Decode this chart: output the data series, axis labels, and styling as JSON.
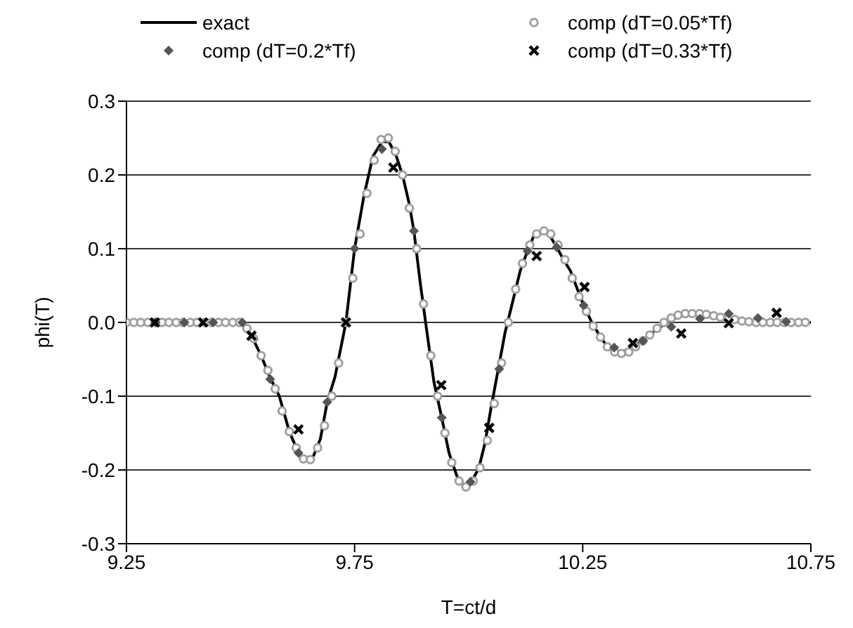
{
  "chart_data": {
    "type": "line",
    "xlabel": "T=ct/d",
    "ylabel": "phi(T)",
    "xlim": [
      9.25,
      10.75
    ],
    "xticks": [
      9.25,
      9.75,
      10.25,
      10.75
    ],
    "ylim": [
      -0.3,
      0.3
    ],
    "yticks": [
      {
        "value": 0.3,
        "label": "0.3"
      },
      {
        "value": 0.2,
        "label": "0.2"
      },
      {
        "value": 0.1,
        "label": "0.1"
      },
      {
        "value": 0,
        "label": "0.0"
      },
      {
        "value": -0.1,
        "label": "-0.1"
      },
      {
        "value": -0.2,
        "label": "-0.2"
      },
      {
        "value": -0.3,
        "label": "-0.3"
      }
    ],
    "grid": "y",
    "legend": "top",
    "series": [
      {
        "name": "exact",
        "marker": "none",
        "line_style": "solid",
        "color": "#000000",
        "x": [
          9.25,
          9.35,
          9.45,
          9.504,
          9.524,
          9.545,
          9.565,
          9.585,
          9.607,
          9.627,
          9.642,
          9.66,
          9.675,
          9.69,
          9.707,
          9.731,
          9.75,
          9.77,
          9.79,
          9.81,
          9.825,
          9.84,
          9.855,
          9.87,
          9.88,
          9.894,
          9.909,
          9.924,
          9.941,
          9.957,
          9.974,
          9.99,
          10.007,
          10.022,
          10.036,
          10.049,
          10.065,
          10.08,
          10.098,
          10.113,
          10.129,
          10.144,
          10.16,
          10.175,
          10.193,
          10.209,
          10.223,
          10.252,
          10.27,
          10.288,
          10.303,
          10.319,
          10.334,
          10.35,
          10.38,
          10.411,
          10.442,
          10.473,
          10.509,
          10.54,
          10.58,
          10.632,
          10.75
        ],
        "values": [
          0,
          0,
          0,
          0,
          -0.018,
          -0.045,
          -0.075,
          -0.1,
          -0.148,
          -0.177,
          -0.187,
          -0.181,
          -0.158,
          -0.108,
          -0.074,
          0,
          0.1,
          0.17,
          0.225,
          0.245,
          0.245,
          0.228,
          0.2,
          0.16,
          0.124,
          0.053,
          -0.015,
          -0.081,
          -0.129,
          -0.177,
          -0.208,
          -0.222,
          -0.215,
          -0.198,
          -0.163,
          -0.116,
          -0.063,
          -0.013,
          0.032,
          0.07,
          0.097,
          0.119,
          0.124,
          0.121,
          0.102,
          0.084,
          0.07,
          0.023,
          0,
          -0.019,
          -0.032,
          -0.04,
          -0.04,
          -0.037,
          -0.025,
          -0.01,
          0.003,
          0.01,
          0.012,
          0.01,
          0.005,
          0.001,
          0
        ]
      },
      {
        "name": "comp (dT=0.05*Tf)",
        "type": "scatter",
        "marker": "circle",
        "color": "#a0a0a0",
        "x": [
          9.25,
          9.266,
          9.281,
          9.297,
          9.312,
          9.328,
          9.343,
          9.359,
          9.374,
          9.39,
          9.405,
          9.421,
          9.436,
          9.452,
          9.467,
          9.483,
          9.498,
          9.514,
          9.529,
          9.545,
          9.56,
          9.576,
          9.591,
          9.607,
          9.622,
          9.638,
          9.653,
          9.669,
          9.684,
          9.7,
          9.715,
          9.731,
          9.746,
          9.762,
          9.777,
          9.793,
          9.808,
          9.824,
          9.839,
          9.855,
          9.87,
          9.886,
          9.901,
          9.917,
          9.932,
          9.948,
          9.963,
          9.979,
          9.994,
          10.01,
          10.025,
          10.041,
          10.056,
          10.072,
          10.087,
          10.103,
          10.118,
          10.134,
          10.149,
          10.165,
          10.18,
          10.196,
          10.211,
          10.227,
          10.242,
          10.258,
          10.273,
          10.289,
          10.304,
          10.32,
          10.335,
          10.351,
          10.366,
          10.382,
          10.397,
          10.413,
          10.428,
          10.444,
          10.459,
          10.475,
          10.49,
          10.506,
          10.521,
          10.537,
          10.552,
          10.568,
          10.583,
          10.599,
          10.614,
          10.63,
          10.645,
          10.661,
          10.676,
          10.692,
          10.707,
          10.723,
          10.738
        ],
        "values": [
          0,
          0,
          0,
          0,
          0,
          0,
          0,
          0,
          0,
          0,
          0,
          0,
          0,
          0,
          0,
          0,
          0,
          -0.008,
          -0.022,
          -0.045,
          -0.065,
          -0.09,
          -0.12,
          -0.148,
          -0.17,
          -0.185,
          -0.186,
          -0.17,
          -0.14,
          -0.1,
          -0.055,
          0,
          0.06,
          0.12,
          0.175,
          0.22,
          0.248,
          0.25,
          0.232,
          0.2,
          0.155,
          0.1,
          0.025,
          -0.045,
          -0.1,
          -0.15,
          -0.19,
          -0.215,
          -0.223,
          -0.215,
          -0.197,
          -0.16,
          -0.11,
          -0.055,
          0,
          0.045,
          0.08,
          0.105,
          0.12,
          0.124,
          0.12,
          0.105,
          0.085,
          0.06,
          0.035,
          0.015,
          -0.005,
          -0.02,
          -0.033,
          -0.04,
          -0.042,
          -0.04,
          -0.033,
          -0.025,
          -0.017,
          -0.008,
          0,
          0.006,
          0.01,
          0.012,
          0.012,
          0.012,
          0.011,
          0.009,
          0.007,
          0.005,
          0.004,
          0.002,
          0.001,
          0,
          0,
          0,
          0,
          0,
          0,
          0,
          0
        ]
      },
      {
        "name": "comp (dT=0.2*Tf)",
        "type": "scatter",
        "marker": "diamond",
        "color": "#555555",
        "x": [
          9.314,
          9.377,
          9.44,
          9.504,
          9.565,
          9.627,
          9.69,
          9.75,
          9.81,
          9.88,
          9.941,
          10.004,
          10.067,
          10.129,
          10.193,
          10.252,
          10.319,
          10.382,
          10.444,
          10.507,
          10.57,
          10.634,
          10.696
        ],
        "values": [
          0,
          0,
          0,
          0,
          -0.077,
          -0.177,
          -0.108,
          0.1,
          0.235,
          0.124,
          -0.129,
          -0.216,
          -0.063,
          0.097,
          0.102,
          0.023,
          -0.034,
          -0.025,
          -0.006,
          0.005,
          0.012,
          0.006,
          0.001
        ]
      },
      {
        "name": "comp (dT=0.33*Tf)",
        "type": "scatter",
        "marker": "cross",
        "color": "#000000",
        "x": [
          9.312,
          9.418,
          9.524,
          9.627,
          9.731,
          9.835,
          9.94,
          10.045,
          10.149,
          10.254,
          10.36,
          10.466,
          10.57,
          10.675
        ],
        "values": [
          0,
          0,
          -0.018,
          -0.145,
          0,
          0.21,
          -0.085,
          -0.143,
          0.09,
          0.048,
          -0.028,
          -0.015,
          -0.001,
          0.013
        ]
      }
    ]
  }
}
